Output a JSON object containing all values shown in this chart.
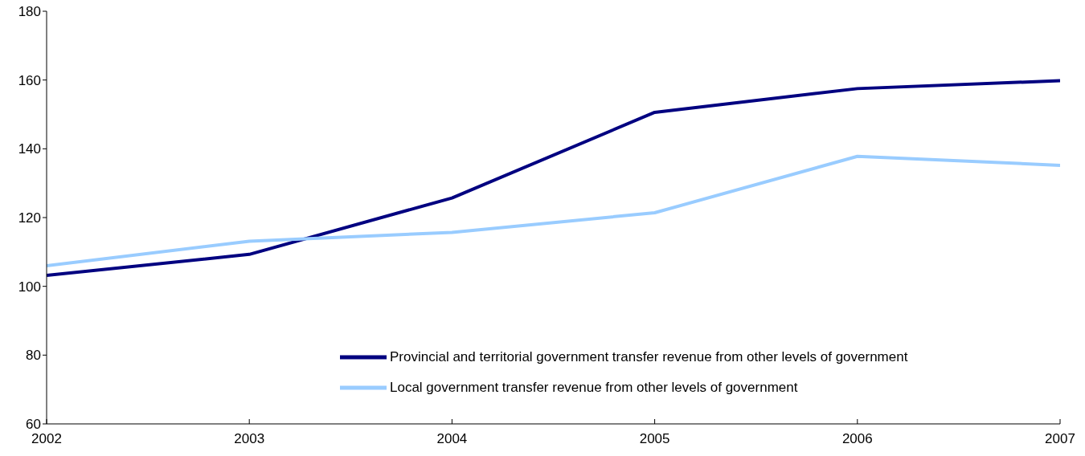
{
  "chart_data": {
    "type": "line",
    "x": [
      2002,
      2003,
      2004,
      2005,
      2006,
      2007
    ],
    "xlim": [
      2002,
      2007
    ],
    "xticks": [
      2002,
      2003,
      2004,
      2005,
      2006,
      2007
    ],
    "ylim": [
      60,
      180
    ],
    "yticks": [
      60,
      80,
      100,
      120,
      140,
      160,
      180
    ],
    "grid": false,
    "legend": "bottom right",
    "marker": "none",
    "line_style": "solid",
    "series": [
      {
        "name": "Provincial and territorial government transfer revenue from other levels of government",
        "color": "#000080",
        "values": [
          103.2,
          109.3,
          125.7,
          150.6,
          157.5,
          159.8
        ]
      },
      {
        "name": "Local government transfer revenue from other levels of government",
        "color": "#99ccff",
        "values": [
          106,
          113.1,
          115.7,
          121.4,
          137.8,
          135.2
        ]
      }
    ]
  }
}
